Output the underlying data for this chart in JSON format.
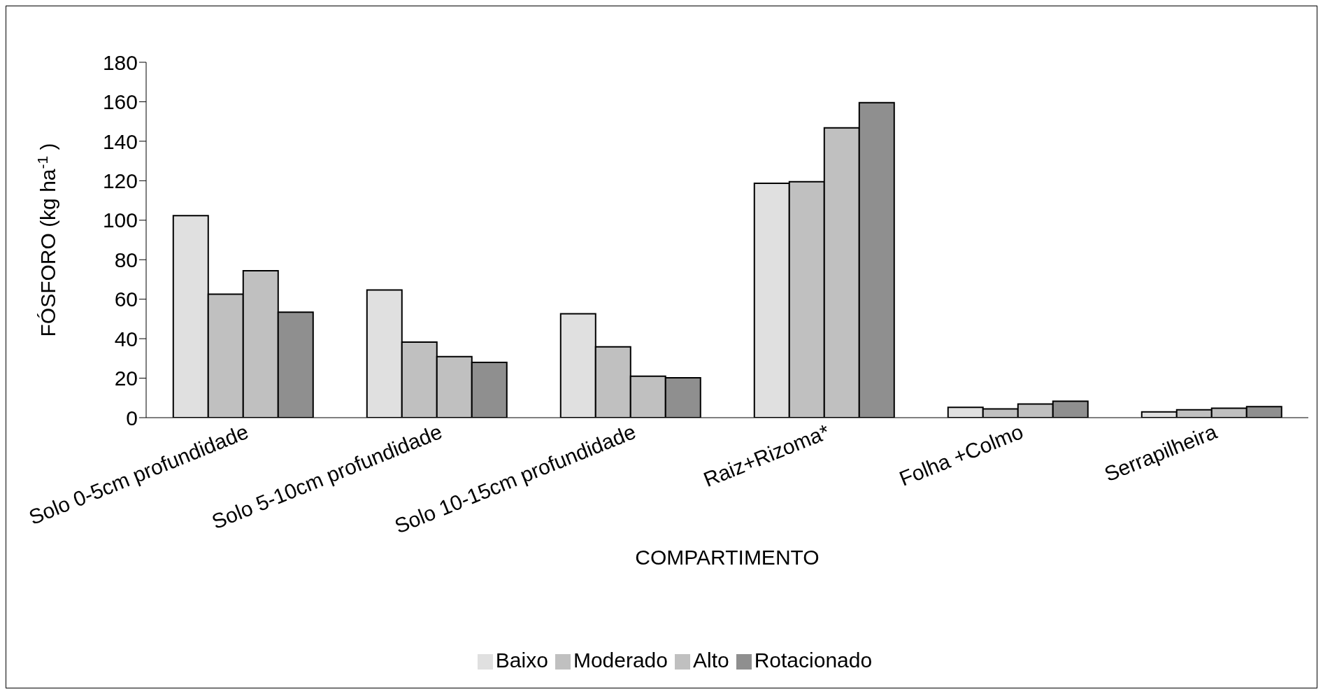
{
  "chart_data": {
    "type": "bar",
    "xlabel": "COMPARTIMENTO",
    "ylabel": "FÓSFORO (kg ha$^{-1}$)",
    "categories": [
      "Solo 0-5cm profundidade",
      "Solo 5-10cm profundidade",
      "Solo 10-15cm profundidade",
      "Raiz+Rizoma*",
      "Folha +Colmo",
      "Serrapilheira"
    ],
    "series": [
      {
        "name": "Baixo",
        "color": "#e0e0e0",
        "values": [
          102.3,
          64.7,
          52.6,
          118.7,
          5.2,
          2.9
        ]
      },
      {
        "name": "Moderado",
        "color": "#c0c0c0",
        "values": [
          62.5,
          38.3,
          35.9,
          119.5,
          4.4,
          4.0
        ]
      },
      {
        "name": "Alto",
        "color": "#c0c0c0",
        "values": [
          74.4,
          30.9,
          21.0,
          146.8,
          6.9,
          4.8
        ]
      },
      {
        "name": "Rotacionado",
        "color": "#8f8f8f",
        "values": [
          53.4,
          28.0,
          20.2,
          159.5,
          8.3,
          5.6
        ]
      }
    ],
    "ylim": [
      0,
      180
    ],
    "yticks": [
      0,
      20,
      40,
      60,
      80,
      100,
      120,
      140,
      160,
      180
    ],
    "grid": false,
    "legend": "bottom"
  }
}
